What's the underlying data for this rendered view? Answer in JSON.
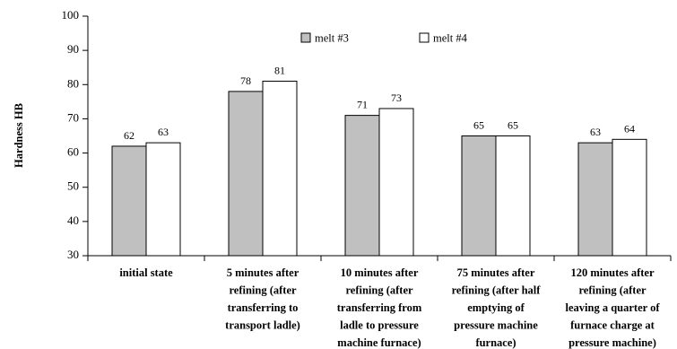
{
  "chart_data": {
    "type": "bar",
    "title": "",
    "xlabel": "",
    "ylabel": "Hardness HB",
    "ylim": [
      30,
      100
    ],
    "yticks": [
      30,
      40,
      50,
      60,
      70,
      80,
      90,
      100
    ],
    "grid": false,
    "legend_position": "top-center",
    "categories": [
      [
        "initial state"
      ],
      [
        "5 minutes after",
        "refining (after",
        "transferring to",
        "transport ladle)"
      ],
      [
        "10 minutes after",
        "refining (after",
        "transferring from",
        "ladle to pressure",
        "machine furnace)"
      ],
      [
        "75 minutes after",
        "refining (after half",
        "emptying of",
        "pressure machine",
        "furnace)"
      ],
      [
        "120 minutes after",
        "refining (after",
        "leaving a quarter of",
        "furnace charge at",
        "pressure machine)"
      ]
    ],
    "series": [
      {
        "name": "melt #3",
        "values": [
          62,
          78,
          71,
          65,
          63
        ],
        "color": "#c0c0c0"
      },
      {
        "name": "melt #4",
        "values": [
          63,
          81,
          73,
          65,
          64
        ],
        "color": "#ffffff"
      }
    ]
  }
}
